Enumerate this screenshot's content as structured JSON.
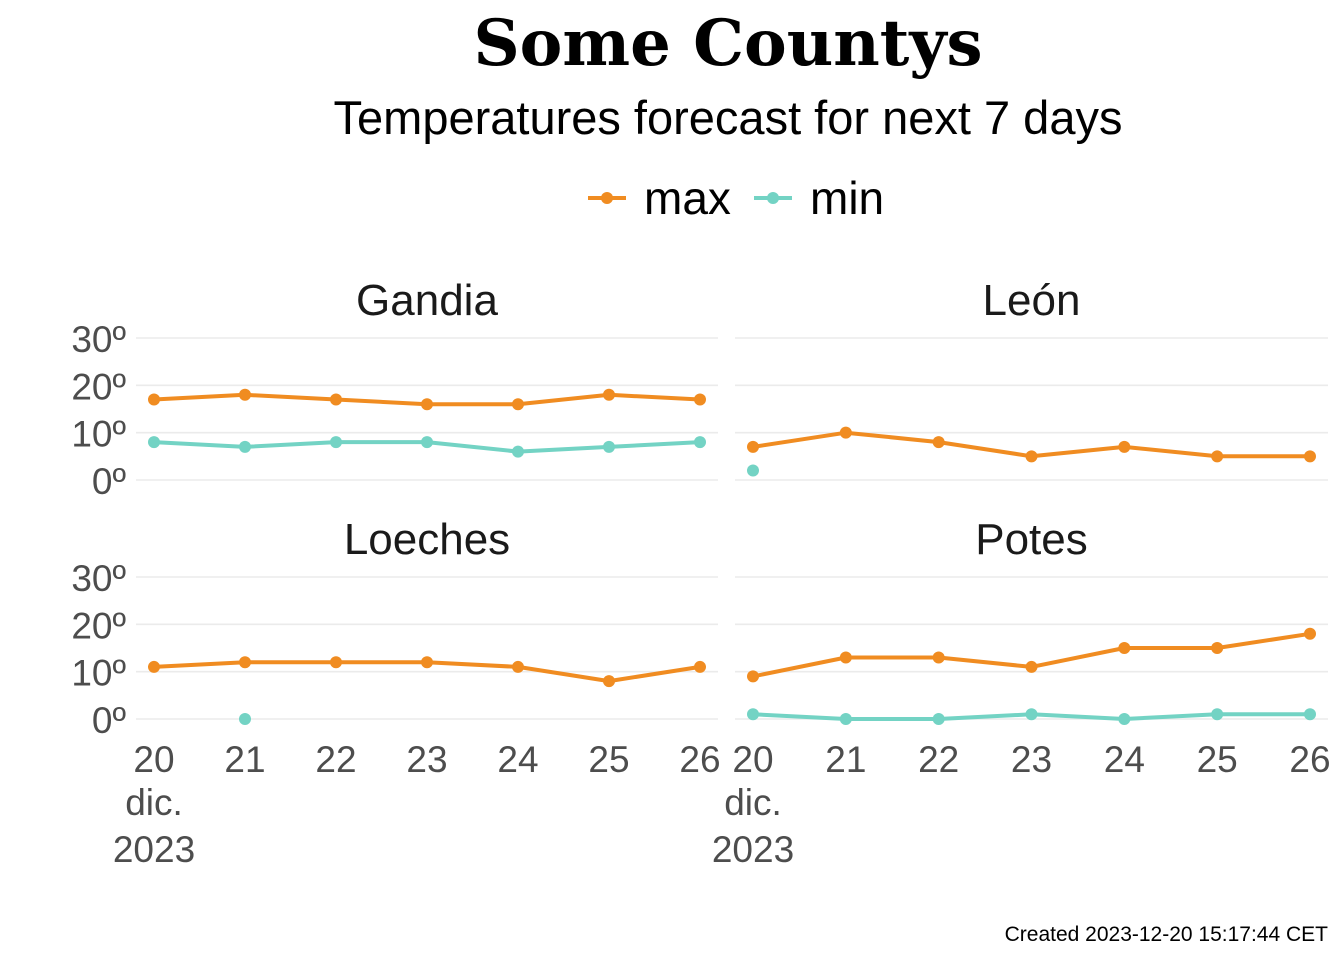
{
  "chart_data": {
    "type": "line",
    "title": "Some Countys",
    "subtitle": "Temperatures forecast for next 7 days",
    "caption": "Created  2023-12-20 15:17:44 CET",
    "legend": {
      "placement": "top",
      "entries": [
        {
          "name": "max",
          "color": "#F08C21"
        },
        {
          "name": "min",
          "color": "#73D3C4"
        }
      ]
    },
    "x_ticks": [
      "20",
      "21",
      "22",
      "23",
      "24",
      "25",
      "26"
    ],
    "x_first_tick_extra": [
      "dic.",
      "2023"
    ],
    "x": [
      "2023-12-20",
      "2023-12-21",
      "2023-12-22",
      "2023-12-23",
      "2023-12-24",
      "2023-12-25",
      "2023-12-26"
    ],
    "y_ticks": [
      "0º",
      "10º",
      "20º",
      "30º"
    ],
    "ylim": [
      0,
      30
    ],
    "grid": true,
    "facets": [
      {
        "name": "Gandia",
        "series": [
          {
            "name": "max",
            "values": [
              17,
              18,
              17,
              16,
              16,
              18,
              17
            ]
          },
          {
            "name": "min",
            "values": [
              8,
              7,
              8,
              8,
              6,
              7,
              8
            ]
          }
        ]
      },
      {
        "name": "León",
        "series": [
          {
            "name": "max",
            "values": [
              7,
              10,
              8,
              5,
              7,
              5,
              5
            ]
          },
          {
            "name": "min",
            "values": [
              2,
              null,
              null,
              null,
              null,
              null,
              null
            ]
          }
        ]
      },
      {
        "name": "Loeches",
        "series": [
          {
            "name": "max",
            "values": [
              11,
              12,
              12,
              12,
              11,
              8,
              11
            ]
          },
          {
            "name": "min",
            "values": [
              null,
              0,
              null,
              null,
              null,
              null,
              null
            ]
          }
        ]
      },
      {
        "name": "Potes",
        "series": [
          {
            "name": "max",
            "values": [
              9,
              13,
              13,
              11,
              15,
              15,
              18
            ]
          },
          {
            "name": "min",
            "values": [
              1,
              0,
              0,
              1,
              0,
              1,
              1
            ]
          }
        ]
      }
    ]
  }
}
